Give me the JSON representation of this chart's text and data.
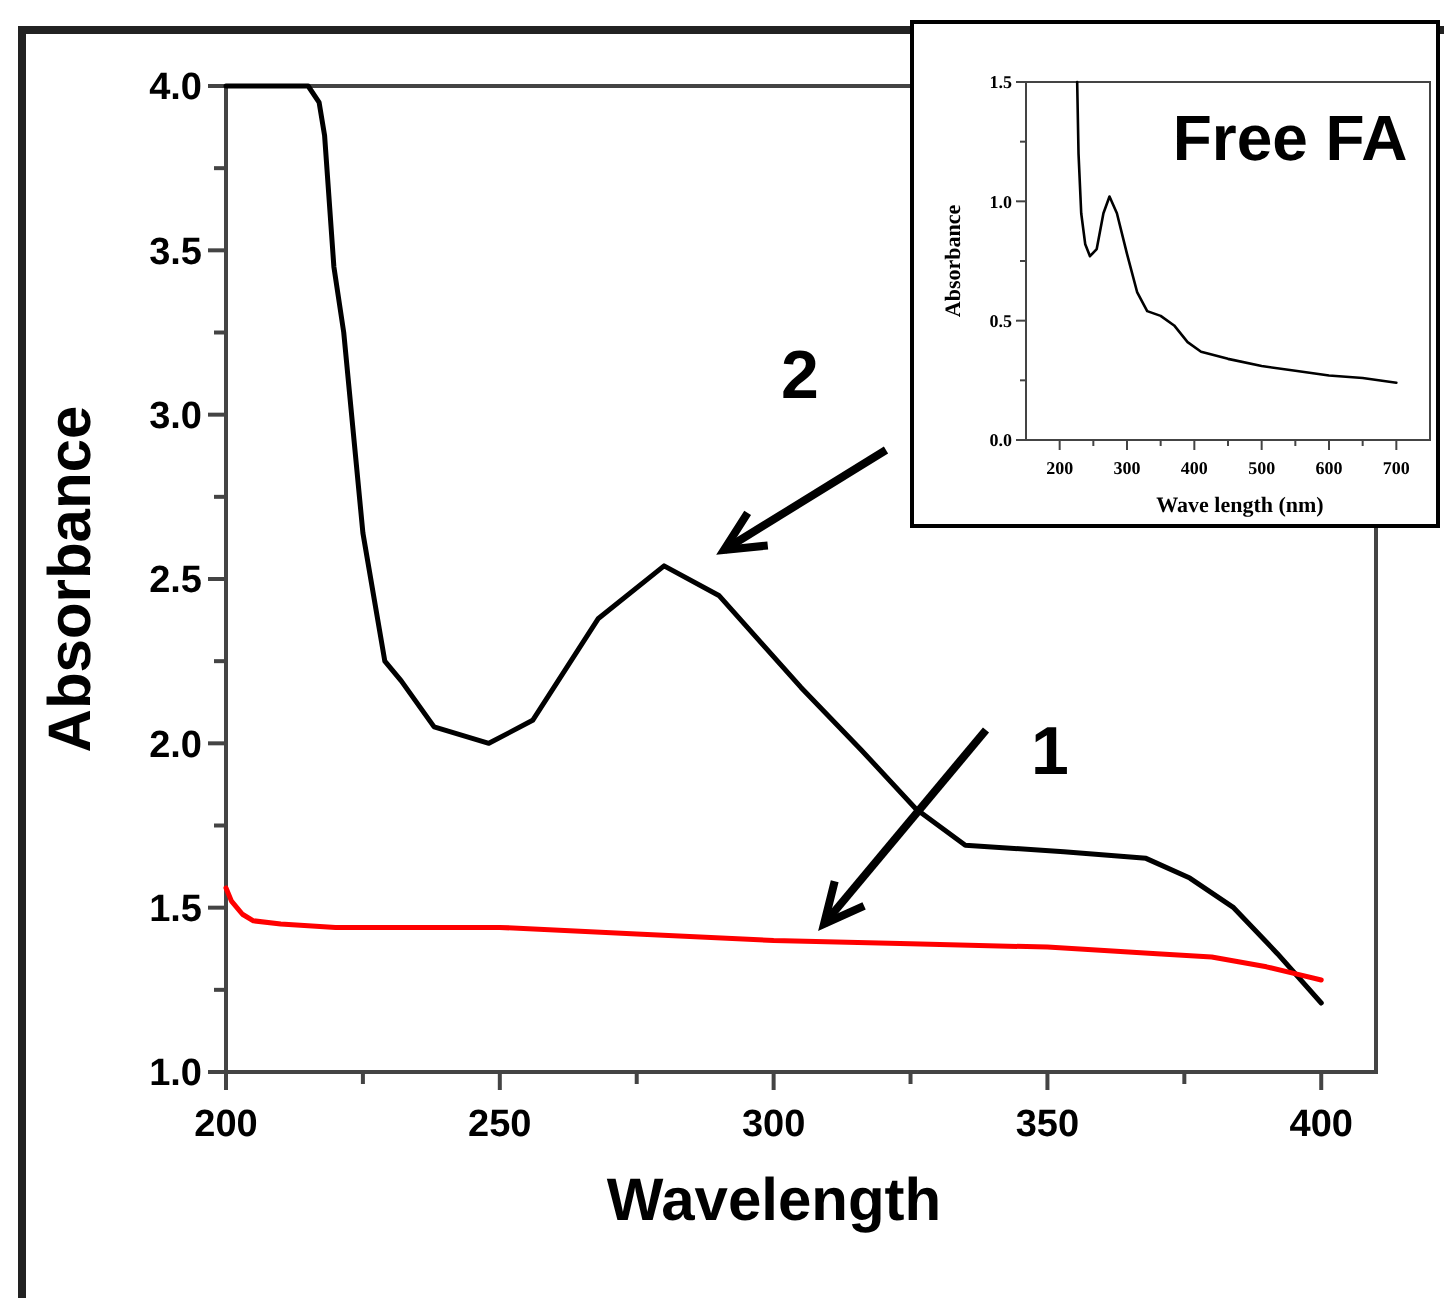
{
  "chart_data": [
    {
      "type": "line",
      "xlabel": "Wavelength",
      "ylabel": "Absorbance",
      "xlim": [
        200,
        410
      ],
      "ylim": [
        1,
        4
      ],
      "xticks": [
        200,
        {
          "value": 225,
          "label": null
        },
        250,
        {
          "value": 275,
          "label": null
        },
        300,
        {
          "value": 325,
          "label": null
        },
        350,
        {
          "value": 375,
          "label": null
        },
        400
      ],
      "yticks": [
        {
          "value": 1,
          "label": "1.0"
        },
        {
          "value": 1.25,
          "label": null
        },
        {
          "value": 1.5,
          "label": "1.5"
        },
        {
          "value": 1.75,
          "label": null
        },
        {
          "value": 2,
          "label": "2.0"
        },
        {
          "value": 2.25,
          "label": null
        },
        {
          "value": 2.5,
          "label": "2.5"
        },
        {
          "value": 2.75,
          "label": null
        },
        {
          "value": 3,
          "label": "3.0"
        },
        {
          "value": 3.25,
          "label": null
        },
        {
          "value": 3.5,
          "label": "3.5"
        },
        {
          "value": 3.75,
          "label": null
        },
        {
          "value": 4,
          "label": "4.0"
        }
      ],
      "grid": false,
      "line_style": "solid",
      "marker": "none",
      "series": [
        {
          "color": "#000000",
          "x": [
            200,
            205,
            210,
            215,
            217,
            218,
            219.7,
            221.5,
            225,
            229,
            232,
            238,
            248,
            256,
            268,
            280,
            290,
            305,
            316,
            326,
            335,
            353,
            368,
            376,
            384,
            392,
            400
          ],
          "values": [
            4,
            4,
            4,
            4,
            3.95,
            3.85,
            3.45,
            3.25,
            2.64,
            2.25,
            2.19,
            2.05,
            2.0,
            2.07,
            2.38,
            2.54,
            2.45,
            2.17,
            1.98,
            1.8,
            1.69,
            1.67,
            1.65,
            1.59,
            1.5,
            1.36,
            1.21
          ]
        },
        {
          "color": "#ff0000",
          "x": [
            200,
            201,
            203,
            205,
            210,
            220,
            250,
            275,
            300,
            325,
            350,
            370,
            380,
            390,
            395,
            400
          ],
          "values": [
            1.56,
            1.52,
            1.48,
            1.46,
            1.45,
            1.44,
            1.44,
            1.42,
            1.4,
            1.39,
            1.38,
            1.36,
            1.35,
            1.32,
            1.3,
            1.28
          ]
        }
      ],
      "annotations": [
        "2",
        "1"
      ]
    },
    {
      "type": "line",
      "title": "Free FA",
      "xlabel": "Wave length (nm)",
      "ylabel": "Absorbance",
      "xlim": [
        150,
        750
      ],
      "ylim": [
        0,
        1.5
      ],
      "xticks": [
        200,
        {
          "value": 250,
          "label": null
        },
        300,
        {
          "value": 350,
          "label": null
        },
        400,
        {
          "value": 450,
          "label": null
        },
        500,
        {
          "value": 550,
          "label": null
        },
        600,
        {
          "value": 650,
          "label": null
        },
        700
      ],
      "yticks": [
        {
          "value": 0,
          "label": "0.0"
        },
        {
          "value": 0.25,
          "label": null
        },
        {
          "value": 0.5,
          "label": "0.5"
        },
        {
          "value": 0.75,
          "label": null
        },
        {
          "value": 1,
          "label": "1.0"
        },
        {
          "value": 1.25,
          "label": null
        },
        {
          "value": 1.5,
          "label": "1.5"
        }
      ],
      "grid": false,
      "line_style": "solid",
      "marker": "none",
      "series": [
        {
          "color": "#000000",
          "x": [
            226,
            228,
            232,
            238,
            245,
            255,
            265,
            274,
            285,
            300,
            315,
            330,
            350,
            370,
            390,
            410,
            450,
            500,
            550,
            600,
            650,
            700
          ],
          "values": [
            1.5,
            1.2,
            0.95,
            0.82,
            0.77,
            0.8,
            0.95,
            1.02,
            0.95,
            0.78,
            0.62,
            0.54,
            0.52,
            0.48,
            0.41,
            0.37,
            0.34,
            0.31,
            0.29,
            0.27,
            0.26,
            0.24
          ]
        }
      ]
    }
  ]
}
